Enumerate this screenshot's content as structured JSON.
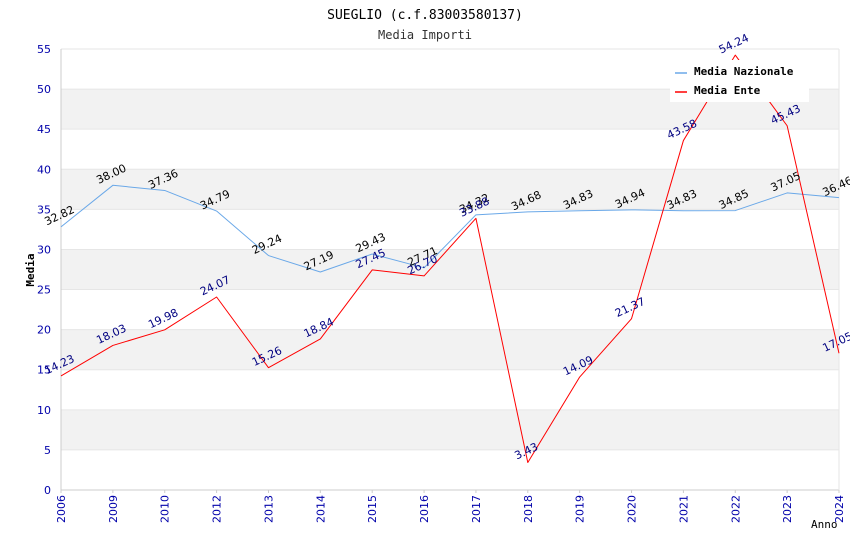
{
  "chart_data": {
    "type": "line",
    "title": "SUEGLIO (c.f.83003580137)",
    "subtitle": "Media Importi",
    "xlabel": "Anno",
    "ylabel": "Media",
    "ylim": [
      0,
      55
    ],
    "yticks": [
      0,
      5,
      10,
      15,
      20,
      25,
      30,
      35,
      40,
      45,
      50,
      55
    ],
    "categories": [
      "2006",
      "2009",
      "2010",
      "2012",
      "2013",
      "2014",
      "2015",
      "2016",
      "2017",
      "2018",
      "2019",
      "2020",
      "2021",
      "2022",
      "2023",
      "2024"
    ],
    "grid": true,
    "legend_position": "top-right",
    "series": [
      {
        "name": "Media Nazionale",
        "color": "#6aa8e8",
        "label_color": "#000000",
        "values": [
          32.82,
          38.0,
          37.36,
          34.79,
          29.24,
          27.19,
          29.43,
          27.71,
          34.32,
          34.68,
          34.83,
          34.94,
          34.83,
          34.85,
          37.05,
          36.46
        ],
        "labels": [
          "32.82",
          "38.00",
          "37.36",
          "34.79",
          "29.24",
          "27.19",
          "29.43",
          "27.71",
          "34.32",
          "34.68",
          "34.83",
          "34.94",
          "34.83",
          "34.85",
          "37.05",
          "36.46"
        ]
      },
      {
        "name": "Media Ente",
        "color": "#ff0000",
        "label_color": "#000080",
        "values": [
          14.23,
          18.03,
          19.98,
          24.07,
          15.26,
          18.84,
          27.45,
          26.7,
          33.88,
          3.43,
          14.09,
          21.37,
          43.58,
          54.24,
          45.43,
          17.05
        ],
        "labels": [
          "14.23",
          "18.03",
          "19.98",
          "24.07",
          "15.26",
          "18.84",
          "27.45",
          "26.70",
          "33.88",
          "3.43",
          "14.09",
          "21.37",
          "43.58",
          "54.24",
          "45.43",
          "17.05"
        ]
      }
    ]
  }
}
